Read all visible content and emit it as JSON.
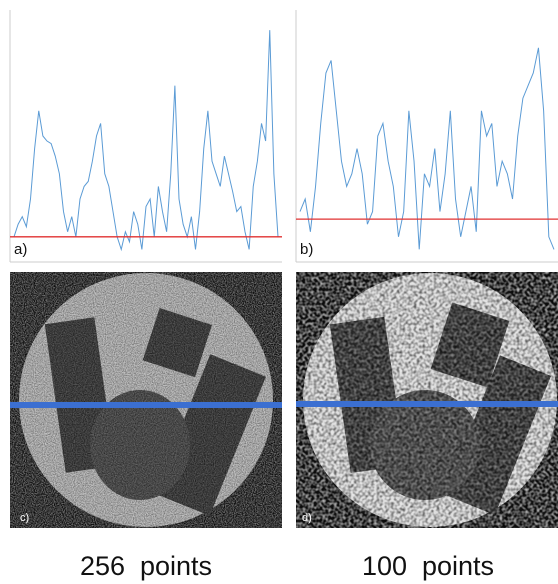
{
  "chart_data": [
    {
      "type": "line",
      "label": "a)",
      "color": "#5b9bd5",
      "ylim": [
        0,
        1
      ],
      "threshold": {
        "value": 0.1,
        "color": "#e03030"
      },
      "values": [
        0.1,
        0.15,
        0.18,
        0.14,
        0.25,
        0.45,
        0.6,
        0.5,
        0.48,
        0.47,
        0.42,
        0.35,
        0.2,
        0.12,
        0.18,
        0.1,
        0.25,
        0.3,
        0.32,
        0.4,
        0.5,
        0.55,
        0.35,
        0.3,
        0.2,
        0.1,
        0.05,
        0.12,
        0.08,
        0.2,
        0.15,
        0.05,
        0.22,
        0.25,
        0.1,
        0.3,
        0.2,
        0.12,
        0.35,
        0.7,
        0.25,
        0.15,
        0.1,
        0.18,
        0.05,
        0.2,
        0.45,
        0.6,
        0.4,
        0.35,
        0.3,
        0.42,
        0.35,
        0.28,
        0.2,
        0.22,
        0.12,
        0.05,
        0.3,
        0.4,
        0.55,
        0.48,
        0.92,
        0.35,
        0.1
      ]
    },
    {
      "type": "line",
      "label": "b)",
      "color": "#5b9bd5",
      "ylim": [
        0,
        1
      ],
      "threshold": {
        "value": 0.17,
        "color": "#e03030"
      },
      "values": [
        0.2,
        0.25,
        0.12,
        0.3,
        0.55,
        0.75,
        0.8,
        0.6,
        0.4,
        0.3,
        0.35,
        0.45,
        0.35,
        0.15,
        0.2,
        0.5,
        0.55,
        0.4,
        0.3,
        0.1,
        0.2,
        0.6,
        0.4,
        0.05,
        0.35,
        0.3,
        0.45,
        0.2,
        0.35,
        0.6,
        0.25,
        0.1,
        0.2,
        0.3,
        0.12,
        0.6,
        0.5,
        0.55,
        0.3,
        0.4,
        0.35,
        0.25,
        0.5,
        0.65,
        0.7,
        0.75,
        0.85,
        0.6,
        0.1,
        0.05
      ]
    }
  ],
  "images": [
    {
      "label": "c)",
      "caption": "256  points"
    },
    {
      "label": "d)",
      "caption": "100  points"
    }
  ]
}
